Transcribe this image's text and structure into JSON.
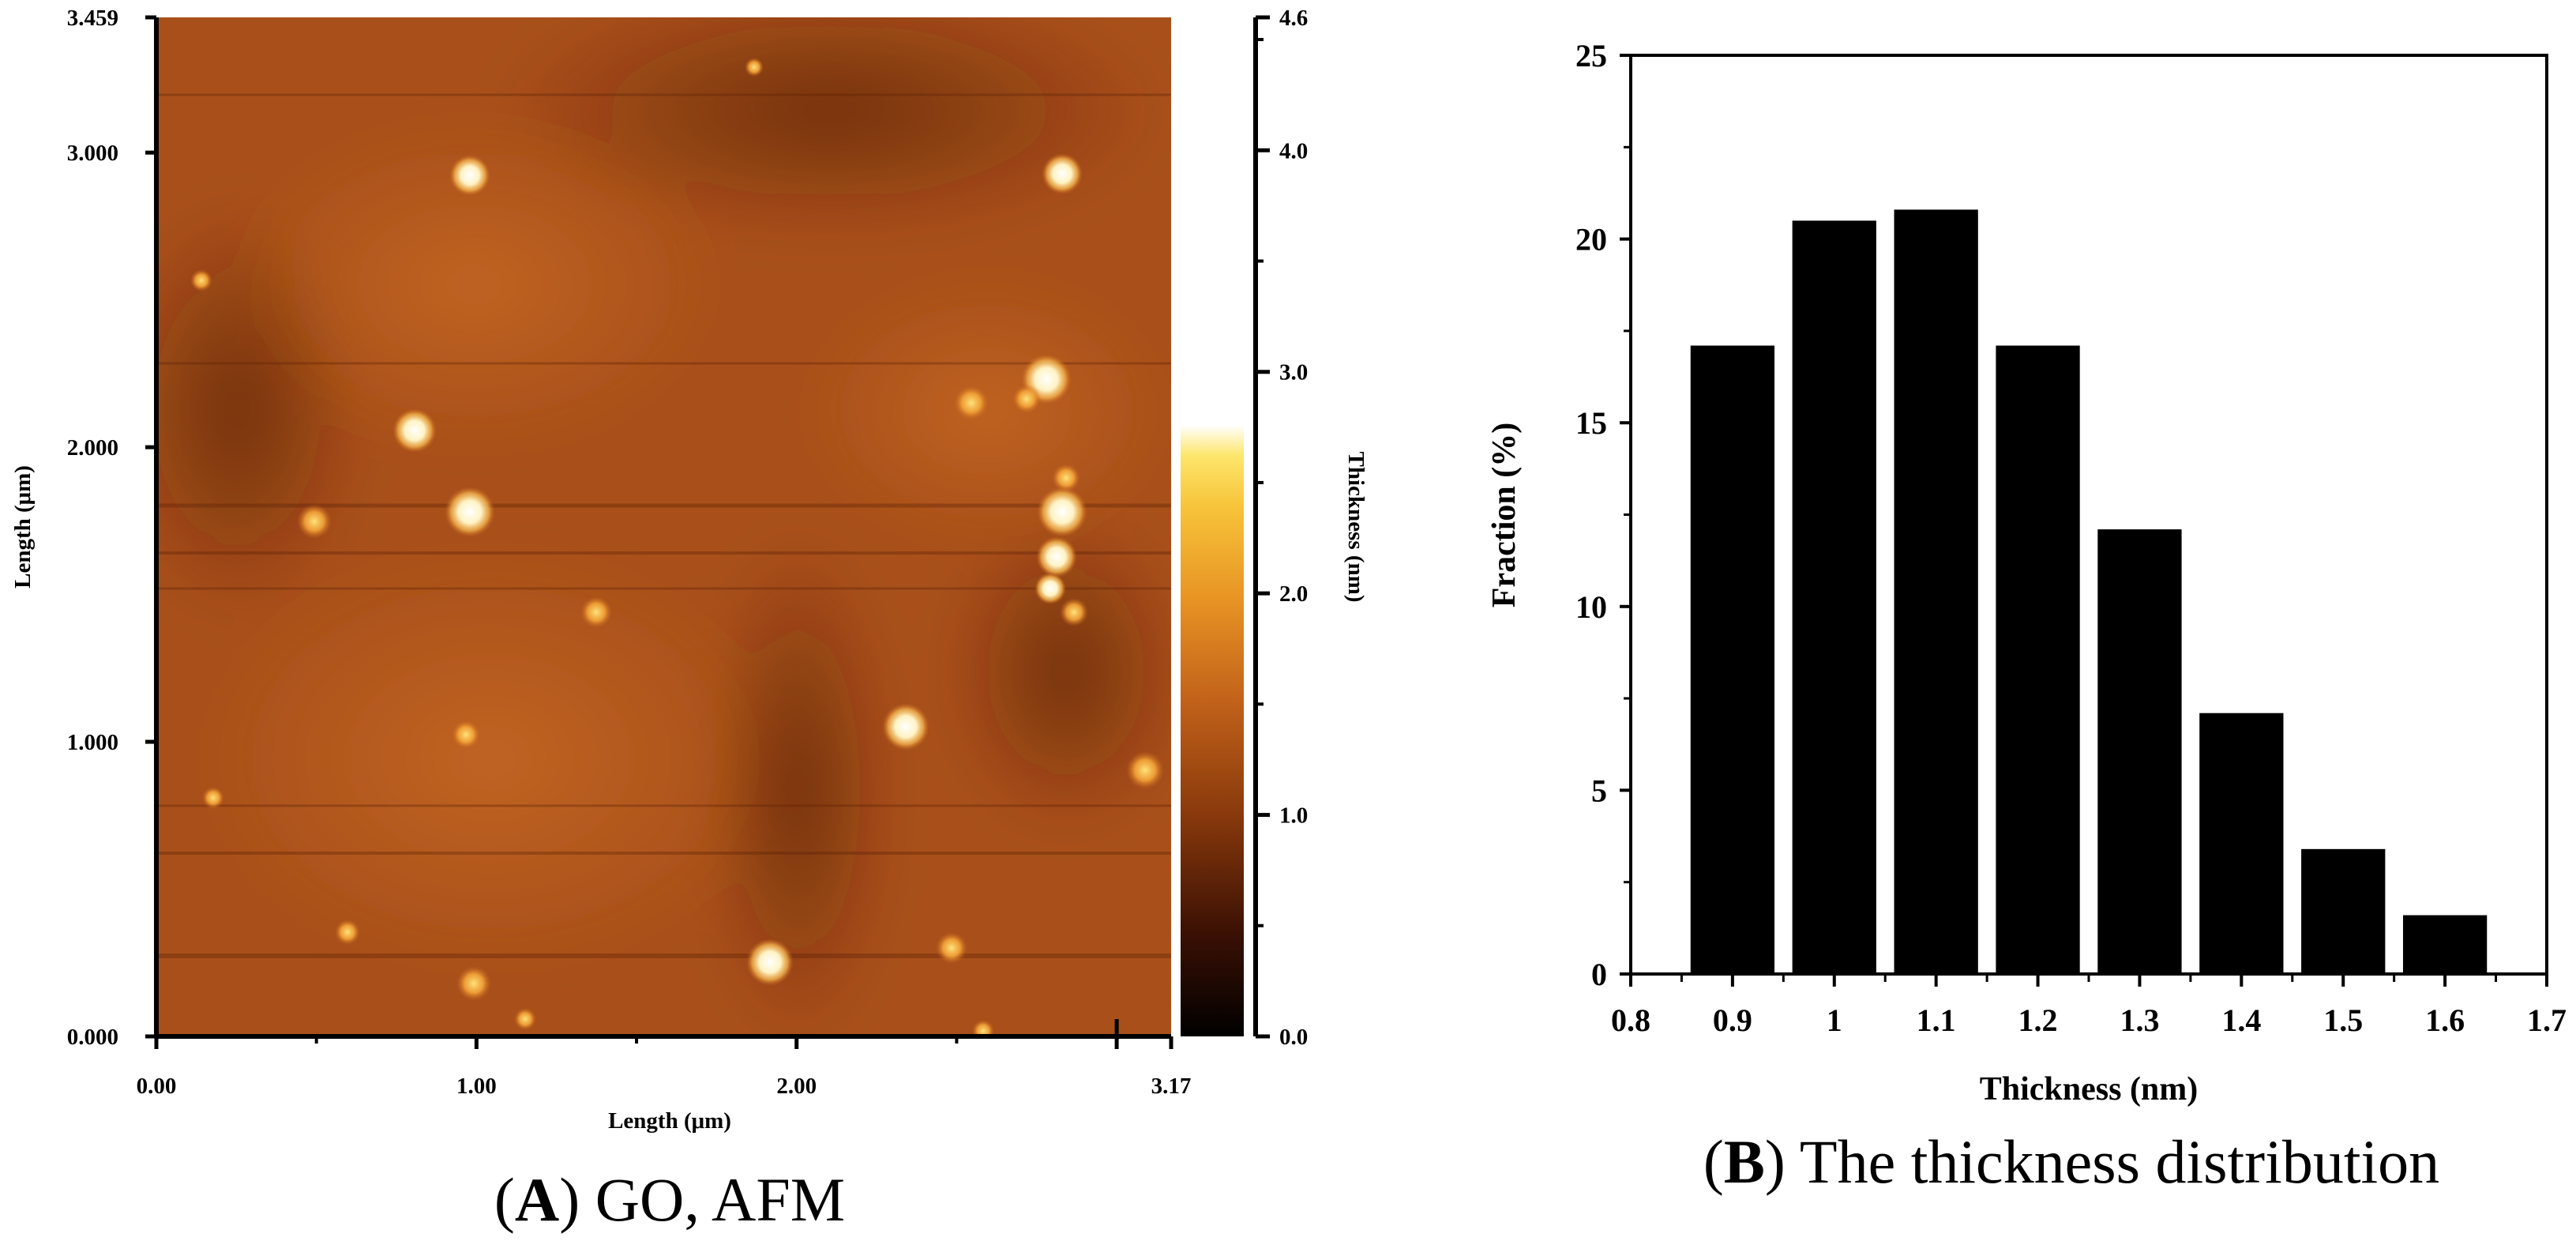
{
  "panel_a": {
    "caption_letter": "A",
    "caption_text": "GO, AFM",
    "x_label": "Length (μm)",
    "y_label": "Length (μm)",
    "x_ticks": [
      "0.00",
      "1.00",
      "2.00",
      "3.17"
    ],
    "x_tick_values": [
      0,
      1,
      2,
      3.17
    ],
    "x_range": [
      0,
      3.17
    ],
    "y_ticks": [
      "0.000",
      "1.000",
      "2.000",
      "3.000",
      "3.459"
    ],
    "y_tick_values": [
      0,
      1,
      2,
      3,
      3.459
    ],
    "y_range": [
      0,
      3.459
    ],
    "colorbar": {
      "label": "Thickness (nm)",
      "ticks": [
        "0.0",
        "1.0",
        "2.0",
        "3.0",
        "4.0",
        "4.6"
      ],
      "tick_values": [
        0,
        1,
        2,
        3,
        4,
        4.6
      ],
      "range": [
        0,
        4.6
      ]
    }
  },
  "chart_data": {
    "type": "bar",
    "caption_letter": "B",
    "caption_text": "The thickness distribution",
    "xlabel": "Thickness (nm)",
    "ylabel": "Fraction (%)",
    "categories": [
      "0.9",
      "1",
      "1.1",
      "1.2",
      "1.3",
      "1.4",
      "1.5",
      "1.6"
    ],
    "x": [
      0.9,
      1.0,
      1.1,
      1.2,
      1.3,
      1.4,
      1.5,
      1.6
    ],
    "values": [
      17.1,
      20.5,
      20.8,
      17.1,
      12.1,
      7.1,
      3.4,
      1.6
    ],
    "xlim": [
      0.8,
      1.7
    ],
    "ylim": [
      0,
      25
    ],
    "x_ticks": [
      "0.8",
      "0.9",
      "1",
      "1.1",
      "1.2",
      "1.3",
      "1.4",
      "1.5",
      "1.6",
      "1.7"
    ],
    "y_ticks": [
      "0",
      "5",
      "10",
      "15",
      "20",
      "25"
    ],
    "bar_color": "#000000",
    "grid": false,
    "legend": "none"
  }
}
